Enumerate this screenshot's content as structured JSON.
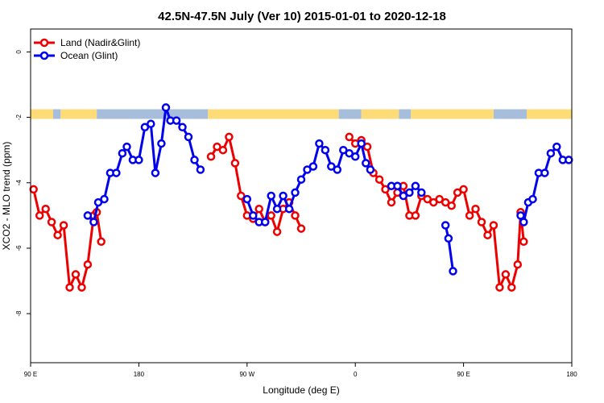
{
  "chart_data": {
    "type": "line",
    "title": "42.5N-47.5N July (Ver 10)   2015-01-01 to 2020-12-18",
    "xlabel": "Longitude (deg E)",
    "ylabel": "XCO2 - MLO trend (ppm)",
    "xlim": [
      90,
      450
    ],
    "ylim": [
      -9.5,
      0.7
    ],
    "x_ticks": [
      {
        "value": 90,
        "label": "90 E"
      },
      {
        "value": 162,
        "label": "180"
      },
      {
        "value": 234,
        "label": "90 W"
      },
      {
        "value": 306,
        "label": "0"
      },
      {
        "value": 378,
        "label": "90 E"
      },
      {
        "value": 450,
        "label": "180"
      }
    ],
    "y_ticks": [
      {
        "value": 0,
        "label": "0"
      },
      {
        "value": -2,
        "label": "-2"
      },
      {
        "value": -4,
        "label": "-4"
      },
      {
        "value": -6,
        "label": "-6"
      },
      {
        "value": -8,
        "label": "-8"
      }
    ],
    "grid": false,
    "legend_position": "top-left",
    "land_ocean_strip": {
      "y": -1.9,
      "colors": {
        "ocean": "#a6bedb",
        "land": "#fddc78"
      },
      "segments": [
        {
          "x0": 90,
          "x1": 105,
          "type": "land"
        },
        {
          "x0": 105,
          "x1": 110,
          "type": "ocean"
        },
        {
          "x0": 110,
          "x1": 134,
          "type": "land"
        },
        {
          "x0": 134,
          "x1": 208,
          "type": "ocean"
        },
        {
          "x0": 208,
          "x1": 295,
          "type": "land"
        },
        {
          "x0": 295,
          "x1": 310,
          "type": "ocean"
        },
        {
          "x0": 310,
          "x1": 335,
          "type": "land"
        },
        {
          "x0": 335,
          "x1": 343,
          "type": "ocean"
        },
        {
          "x0": 343,
          "x1": 398,
          "type": "land"
        },
        {
          "x0": 398,
          "x1": 420,
          "type": "ocean"
        },
        {
          "x0": 420,
          "x1": 450,
          "type": "land"
        }
      ]
    },
    "series": [
      {
        "name": "Land (Nadir&Glint)",
        "color": "#ee0000",
        "segments": [
          {
            "x": [
              92,
              96,
              100,
              104,
              108,
              112,
              116,
              120,
              124,
              128,
              132,
              134,
              137
            ],
            "y": [
              -4.2,
              -5.0,
              -4.8,
              -5.2,
              -5.6,
              -5.3,
              -7.2,
              -6.8,
              -7.2,
              -6.5,
              -5.0,
              -4.9,
              -5.8
            ]
          },
          {
            "x": [
              210,
              214,
              218,
              222,
              226,
              230,
              234,
              238,
              242,
              246,
              250,
              254,
              258,
              262,
              266,
              270
            ],
            "y": [
              -3.2,
              -2.9,
              -3.0,
              -2.6,
              -3.4,
              -4.4,
              -5.0,
              -5.1,
              -4.8,
              -5.2,
              -5.0,
              -5.5,
              -4.8,
              -4.6,
              -5.0,
              -5.4
            ]
          },
          {
            "x": [
              302,
              306,
              310,
              314,
              318,
              322,
              326,
              330,
              334,
              338,
              342,
              346,
              350,
              354,
              358,
              362,
              366,
              370,
              374,
              378,
              382,
              386,
              390,
              394,
              398,
              402,
              406,
              410,
              414,
              416,
              418
            ],
            "y": [
              -2.6,
              -2.8,
              -2.7,
              -2.9,
              -3.7,
              -3.9,
              -4.2,
              -4.6,
              -4.3,
              -4.1,
              -5.0,
              -5.0,
              -4.4,
              -4.5,
              -4.6,
              -4.5,
              -4.6,
              -4.7,
              -4.3,
              -4.2,
              -5.0,
              -4.8,
              -5.2,
              -5.6,
              -5.3,
              -7.2,
              -6.8,
              -7.2,
              -6.5,
              -4.9,
              -5.8
            ]
          }
        ]
      },
      {
        "name": "Ocean (Glint)",
        "color": "#0000ee",
        "segments": [
          {
            "x": [
              128,
              132,
              135,
              139,
              143,
              147,
              151,
              154,
              158,
              162,
              166,
              170,
              173,
              177,
              180,
              183,
              187,
              191,
              195,
              199,
              203
            ],
            "y": [
              -5.0,
              -5.2,
              -4.6,
              -4.5,
              -3.7,
              -3.7,
              -3.1,
              -2.9,
              -3.3,
              -3.3,
              -2.3,
              -2.2,
              -3.7,
              -2.8,
              -1.7,
              -2.1,
              -2.1,
              -2.3,
              -2.6,
              -3.3,
              -3.6
            ]
          },
          {
            "x": [
              234,
              238,
              242,
              246,
              250,
              254,
              258,
              262,
              266,
              270,
              274,
              278,
              282,
              286,
              290,
              294,
              298,
              302,
              306,
              310,
              313,
              316
            ],
            "y": [
              -4.5,
              -5.0,
              -5.2,
              -5.2,
              -4.4,
              -4.8,
              -4.4,
              -4.8,
              -4.3,
              -3.9,
              -3.6,
              -3.5,
              -2.8,
              -3.0,
              -3.5,
              -3.6,
              -3.0,
              -3.1,
              -3.2,
              -2.8,
              -3.4,
              -3.6
            ]
          },
          {
            "x": [
              330,
              334,
              338,
              342,
              346,
              350
            ],
            "y": [
              -4.1,
              -4.1,
              -4.4,
              -4.3,
              -4.1,
              -4.3
            ]
          },
          {
            "x": [
              366,
              368,
              371
            ],
            "y": [
              -5.3,
              -5.7,
              -6.7
            ]
          },
          {
            "x": [
              416,
              418,
              421,
              424,
              428,
              432,
              436,
              440,
              444,
              448
            ],
            "y": [
              -5.0,
              -5.2,
              -4.6,
              -4.5,
              -3.7,
              -3.7,
              -3.1,
              -2.9,
              -3.3,
              -3.3
            ]
          }
        ]
      }
    ]
  }
}
